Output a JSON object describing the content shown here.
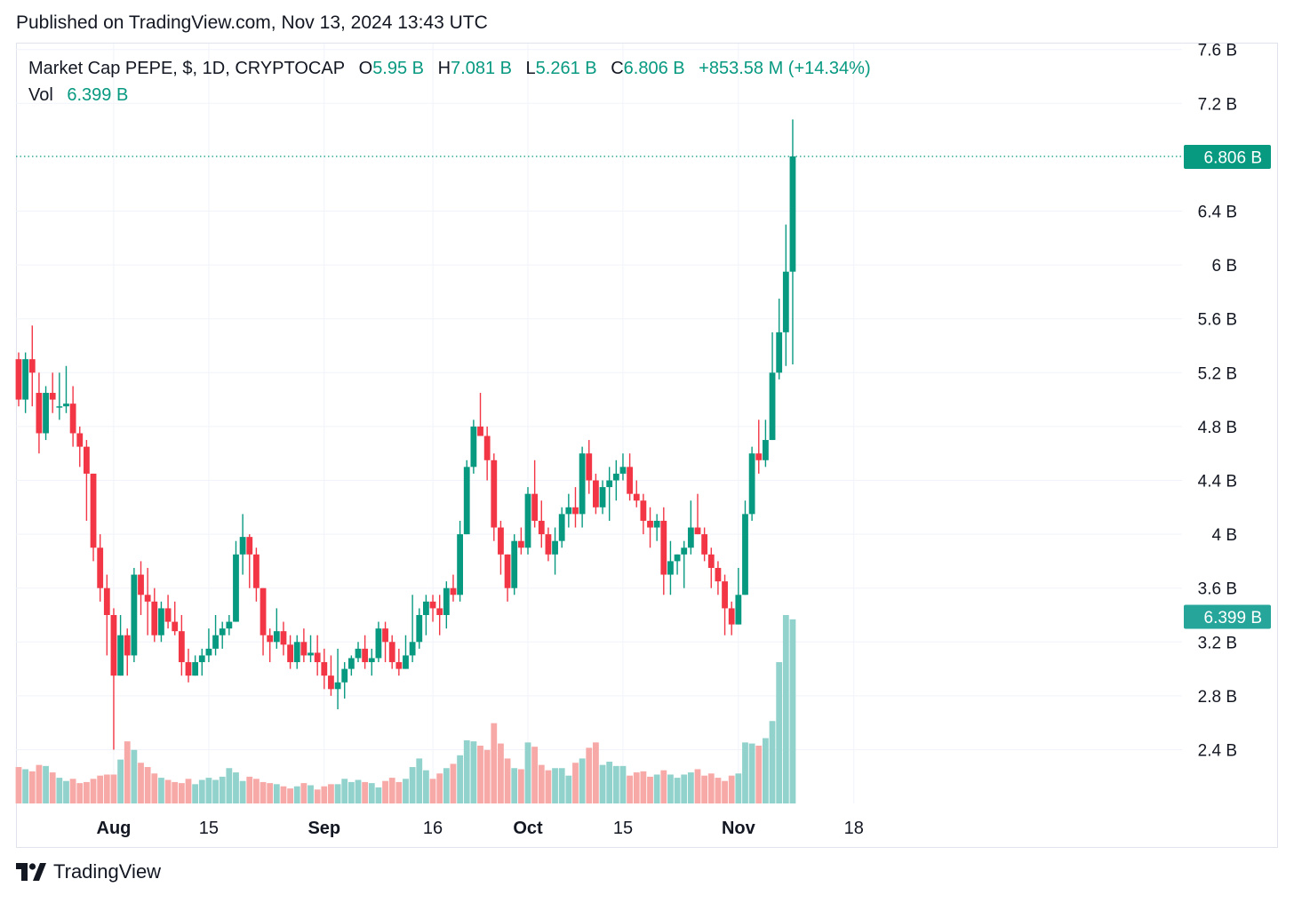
{
  "published": "Published on TradingView.com, Nov 13, 2024 13:43 UTC",
  "legend": {
    "title": "Market Cap PEPE, $, 1D, CRYPTOCAP",
    "o_label": "O",
    "o_value": "5.95 B",
    "h_label": "H",
    "h_value": "7.081 B",
    "l_label": "L",
    "l_value": "5.261 B",
    "c_label": "C",
    "c_value": "6.806 B",
    "change": "+853.58 M (+14.34%)",
    "vol_label": "Vol",
    "vol_value": "6.399 B"
  },
  "brand": {
    "name": "TradingView",
    "logo_icon": "tradingview-logo-icon"
  },
  "colors": {
    "up": "#089981",
    "down": "#f23645",
    "vol_up": "#92d2cc",
    "vol_down": "#f7a9a7",
    "grid": "#f0f3fa",
    "price_tag": "#089981",
    "vol_tag": "#26a69a"
  },
  "chart_data": {
    "type": "candlestick",
    "title": "Market Cap PEPE, $, 1D, CRYPTOCAP",
    "x_ticks": [
      {
        "label": "Aug",
        "index": 14,
        "bold": true
      },
      {
        "label": "15",
        "index": 28,
        "bold": false
      },
      {
        "label": "Sep",
        "index": 45,
        "bold": true
      },
      {
        "label": "16",
        "index": 61,
        "bold": false
      },
      {
        "label": "Oct",
        "index": 75,
        "bold": true
      },
      {
        "label": "15",
        "index": 89,
        "bold": false
      },
      {
        "label": "Nov",
        "index": 106,
        "bold": true
      },
      {
        "label": "18",
        "index": 123,
        "bold": false
      }
    ],
    "y_ticks": [
      2.4,
      2.8,
      3.2,
      3.6,
      4,
      4.4,
      4.8,
      5.2,
      5.6,
      6,
      6.4,
      7.2,
      7.6
    ],
    "y_tick_labels": [
      "2.4 B",
      "2.8 B",
      "3.2 B",
      "3.6 B",
      "4 B",
      "4.4 B",
      "4.8 B",
      "5.2 B",
      "5.6 B",
      "6 B",
      "6.4 B",
      "7.2 B",
      "7.6 B"
    ],
    "ylim": [
      1.95,
      7.75
    ],
    "y_unit": "B",
    "last_price": 6.806,
    "last_price_label": "6.806 B",
    "last_volume_label": "6.399 B",
    "volume_tag_level": 3.39,
    "volume_scale_max": 6.399,
    "grid": true,
    "candles": [
      [
        5.3,
        5.35,
        4.95,
        5.0,
        3.4
      ],
      [
        5.0,
        5.35,
        4.9,
        5.3,
        3.2
      ],
      [
        5.3,
        5.55,
        4.95,
        5.2,
        3.0
      ],
      [
        5.05,
        5.2,
        4.6,
        4.75,
        3.6
      ],
      [
        4.75,
        5.1,
        4.7,
        5.05,
        3.5
      ],
      [
        5.05,
        5.2,
        4.9,
        5.0,
        2.9
      ],
      [
        4.95,
        5.2,
        4.85,
        4.95,
        2.4
      ],
      [
        4.95,
        5.25,
        4.9,
        4.97,
        2.1
      ],
      [
        4.97,
        5.1,
        4.65,
        4.75,
        2.3
      ],
      [
        4.75,
        4.8,
        4.5,
        4.65,
        1.9
      ],
      [
        4.65,
        4.7,
        4.1,
        4.45,
        2.0
      ],
      [
        4.45,
        4.45,
        3.8,
        3.9,
        2.3
      ],
      [
        3.9,
        4.0,
        3.5,
        3.6,
        2.6
      ],
      [
        3.6,
        3.7,
        3.1,
        3.4,
        2.7
      ],
      [
        3.4,
        3.45,
        2.4,
        2.95,
        2.7
      ],
      [
        2.95,
        3.4,
        2.95,
        3.25,
        4.1
      ],
      [
        3.25,
        3.3,
        2.95,
        3.1,
        5.8
      ],
      [
        3.1,
        3.75,
        3.05,
        3.7,
        5.0
      ],
      [
        3.7,
        3.8,
        3.4,
        3.55,
        3.8
      ],
      [
        3.55,
        3.75,
        3.25,
        3.5,
        3.4
      ],
      [
        3.5,
        3.6,
        3.2,
        3.25,
        2.8
      ],
      [
        3.25,
        3.5,
        3.2,
        3.45,
        2.4
      ],
      [
        3.45,
        3.55,
        3.3,
        3.35,
        2.2
      ],
      [
        3.35,
        3.5,
        3.25,
        3.28,
        2.0
      ],
      [
        3.28,
        3.4,
        2.95,
        3.05,
        1.9
      ],
      [
        3.05,
        3.15,
        2.9,
        2.95,
        2.3
      ],
      [
        2.95,
        3.1,
        2.95,
        3.05,
        1.8
      ],
      [
        3.05,
        3.15,
        2.95,
        3.1,
        2.2
      ],
      [
        3.1,
        3.3,
        3.05,
        3.15,
        2.4
      ],
      [
        3.15,
        3.4,
        3.1,
        3.25,
        2.2
      ],
      [
        3.25,
        3.35,
        3.15,
        3.3,
        2.5
      ],
      [
        3.3,
        3.4,
        3.25,
        3.35,
        3.3
      ],
      [
        3.35,
        3.95,
        3.35,
        3.85,
        2.9
      ],
      [
        3.85,
        4.15,
        3.7,
        3.98,
        2.1
      ],
      [
        3.98,
        4.0,
        3.6,
        3.85,
        2.5
      ],
      [
        3.85,
        3.9,
        3.5,
        3.6,
        2.3
      ],
      [
        3.6,
        3.6,
        3.1,
        3.25,
        2.0
      ],
      [
        3.25,
        3.3,
        3.05,
        3.2,
        1.9
      ],
      [
        3.2,
        3.45,
        3.15,
        3.28,
        1.8
      ],
      [
        3.28,
        3.35,
        3.1,
        3.18,
        1.6
      ],
      [
        3.18,
        3.25,
        3.0,
        3.05,
        1.4
      ],
      [
        3.05,
        3.25,
        3.0,
        3.2,
        1.6
      ],
      [
        3.2,
        3.3,
        3.05,
        3.1,
        1.9
      ],
      [
        3.1,
        3.25,
        3.05,
        3.12,
        1.7
      ],
      [
        3.12,
        3.25,
        2.95,
        3.05,
        1.3
      ],
      [
        3.05,
        3.15,
        2.85,
        2.95,
        1.6
      ],
      [
        2.95,
        3.1,
        2.8,
        2.85,
        1.8
      ],
      [
        2.85,
        3.15,
        2.7,
        2.9,
        1.8
      ],
      [
        2.9,
        3.05,
        2.78,
        3.0,
        2.3
      ],
      [
        3.0,
        3.1,
        2.95,
        3.08,
        2.0
      ],
      [
        3.08,
        3.2,
        3.05,
        3.15,
        2.2
      ],
      [
        3.15,
        3.25,
        3.0,
        3.05,
        2.0
      ],
      [
        3.05,
        3.15,
        2.95,
        3.08,
        1.9
      ],
      [
        3.08,
        3.35,
        3.05,
        3.3,
        1.5
      ],
      [
        3.3,
        3.35,
        3.05,
        3.2,
        2.1
      ],
      [
        3.2,
        3.25,
        3.0,
        3.05,
        2.4
      ],
      [
        3.05,
        3.15,
        2.95,
        3.0,
        2.0
      ],
      [
        3.0,
        3.25,
        3.0,
        3.1,
        2.3
      ],
      [
        3.1,
        3.55,
        3.05,
        3.2,
        3.4
      ],
      [
        3.2,
        3.45,
        3.15,
        3.4,
        4.2
      ],
      [
        3.4,
        3.55,
        3.25,
        3.5,
        3.1
      ],
      [
        3.5,
        3.55,
        3.35,
        3.45,
        2.3
      ],
      [
        3.45,
        3.55,
        3.25,
        3.4,
        2.8
      ],
      [
        3.4,
        3.65,
        3.3,
        3.6,
        3.3
      ],
      [
        3.6,
        3.7,
        3.5,
        3.55,
        3.7
      ],
      [
        3.55,
        4.1,
        3.5,
        4.0,
        4.5
      ],
      [
        4.0,
        4.55,
        4.0,
        4.5,
        5.9
      ],
      [
        4.5,
        4.85,
        4.45,
        4.8,
        5.8
      ],
      [
        4.8,
        5.05,
        4.75,
        4.73,
        5.4
      ],
      [
        4.73,
        4.8,
        4.4,
        4.55,
        5.0
      ],
      [
        4.55,
        4.6,
        3.95,
        4.05,
        7.5
      ],
      [
        4.05,
        4.1,
        3.7,
        3.85,
        5.6
      ],
      [
        3.85,
        3.85,
        3.5,
        3.6,
        4.2
      ],
      [
        3.6,
        4.0,
        3.55,
        3.95,
        3.3
      ],
      [
        3.95,
        4.05,
        3.85,
        3.9,
        3.2
      ],
      [
        3.9,
        4.35,
        3.85,
        4.3,
        5.7
      ],
      [
        4.3,
        4.55,
        4.05,
        4.1,
        5.3
      ],
      [
        4.1,
        4.25,
        3.9,
        4.0,
        3.6
      ],
      [
        4.0,
        4.05,
        3.8,
        3.85,
        3.1
      ],
      [
        3.85,
        4.05,
        3.7,
        3.95,
        3.3
      ],
      [
        3.95,
        4.2,
        3.9,
        4.15,
        3.3
      ],
      [
        4.15,
        4.3,
        4.05,
        4.2,
        2.6
      ],
      [
        4.2,
        4.35,
        4.05,
        4.15,
        3.8
      ],
      [
        4.15,
        4.65,
        4.05,
        4.6,
        4.2
      ],
      [
        4.6,
        4.7,
        4.3,
        4.4,
        5.2
      ],
      [
        4.4,
        4.45,
        4.15,
        4.2,
        5.7
      ],
      [
        4.2,
        4.4,
        4.15,
        4.35,
        3.6
      ],
      [
        4.35,
        4.5,
        4.1,
        4.4,
        3.9
      ],
      [
        4.4,
        4.55,
        4.25,
        4.45,
        3.5
      ],
      [
        4.45,
        4.6,
        4.4,
        4.5,
        3.5
      ],
      [
        4.5,
        4.6,
        4.25,
        4.3,
        2.6
      ],
      [
        4.3,
        4.4,
        4.2,
        4.25,
        2.9
      ],
      [
        4.25,
        4.3,
        4.0,
        4.1,
        3.0
      ],
      [
        4.1,
        4.2,
        3.9,
        4.05,
        2.5
      ],
      [
        4.05,
        4.15,
        3.95,
        4.1,
        2.7
      ],
      [
        4.1,
        4.2,
        3.55,
        3.7,
        3.1
      ],
      [
        3.7,
        3.95,
        3.55,
        3.8,
        2.7
      ],
      [
        3.8,
        3.85,
        3.7,
        3.85,
        2.4
      ],
      [
        3.85,
        3.95,
        3.6,
        3.9,
        2.7
      ],
      [
        3.9,
        4.25,
        3.85,
        4.05,
        2.9
      ],
      [
        4.05,
        4.3,
        4.0,
        4.0,
        3.2
      ],
      [
        4.0,
        4.05,
        3.8,
        3.85,
        2.6
      ],
      [
        3.85,
        3.9,
        3.6,
        3.75,
        2.8
      ],
      [
        3.75,
        3.8,
        3.55,
        3.65,
        2.4
      ],
      [
        3.65,
        3.7,
        3.25,
        3.45,
        2.1
      ],
      [
        3.45,
        3.5,
        3.25,
        3.33,
        2.6
      ],
      [
        3.33,
        3.75,
        3.33,
        3.55,
        2.8
      ],
      [
        3.55,
        4.25,
        3.55,
        4.15,
        5.7
      ],
      [
        4.15,
        4.65,
        4.1,
        4.6,
        5.6
      ],
      [
        4.6,
        4.85,
        4.45,
        4.55,
        5.4
      ],
      [
        4.55,
        4.85,
        4.5,
        4.7,
        6.1
      ],
      [
        4.7,
        5.5,
        4.7,
        5.2,
        7.7
      ],
      [
        5.2,
        5.75,
        5.15,
        5.5,
        13.2
      ],
      [
        5.5,
        6.3,
        5.25,
        5.95,
        17.6
      ],
      [
        5.95,
        7.081,
        5.261,
        6.806,
        17.2
      ]
    ]
  }
}
